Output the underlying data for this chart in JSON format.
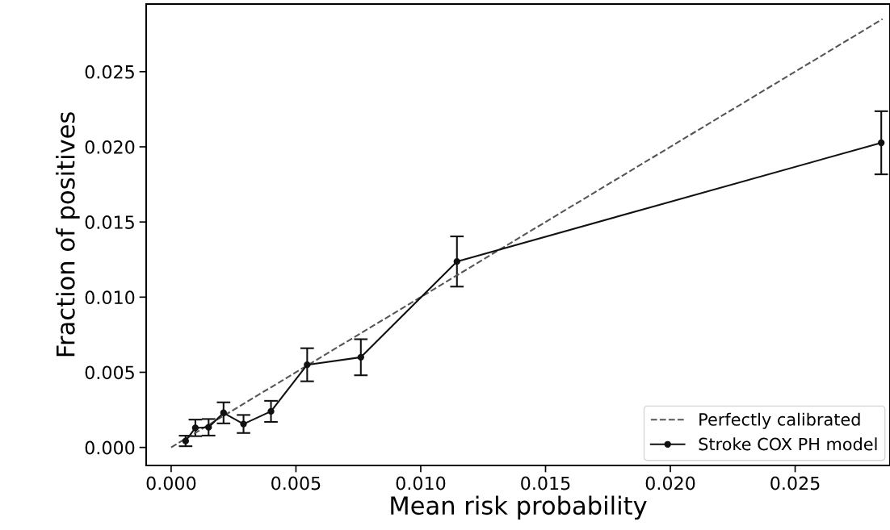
{
  "chart_data": {
    "type": "line",
    "xlabel": "Mean risk probability",
    "ylabel": "Fraction of positives",
    "xlim": [
      -0.001,
      0.0288
    ],
    "ylim": [
      -0.0012,
      0.0295
    ],
    "xticks": [
      {
        "value": 0,
        "label": "0.000"
      },
      {
        "value": 0.005,
        "label": "0.005"
      },
      {
        "value": 0.01,
        "label": "0.010"
      },
      {
        "value": 0.015,
        "label": "0.015"
      },
      {
        "value": 0.02,
        "label": "0.020"
      },
      {
        "value": 0.025,
        "label": "0.025"
      }
    ],
    "yticks": [
      {
        "value": 0,
        "label": "0.000"
      },
      {
        "value": 0.005,
        "label": "0.005"
      },
      {
        "value": 0.01,
        "label": "0.010"
      },
      {
        "value": 0.015,
        "label": "0.015"
      },
      {
        "value": 0.02,
        "label": "0.020"
      },
      {
        "value": 0.025,
        "label": "0.025"
      }
    ],
    "grid": false,
    "legend": "lower right",
    "series": [
      {
        "name": "Perfectly calibrated",
        "color": "#555555",
        "x": [
          0,
          0.0285
        ],
        "values": [
          0,
          0.0285
        ],
        "line_style": "dashed",
        "marker": "none"
      },
      {
        "name": "Stroke COX PH model",
        "color": "#111111",
        "x": [
          0.00058,
          0.00097,
          0.0015,
          0.0021,
          0.0029,
          0.004,
          0.00545,
          0.0076,
          0.01145,
          0.02845
        ],
        "values": [
          0.00043,
          0.0013,
          0.00134,
          0.0023,
          0.00156,
          0.0024,
          0.0055,
          0.006,
          0.01237,
          0.02027
        ],
        "errors": [
          0.00035,
          0.00055,
          0.00055,
          0.0007,
          0.0006,
          0.0007,
          0.0011,
          0.0012,
          0.00167,
          0.0021
        ],
        "line_style": "solid",
        "marker": "circle"
      }
    ]
  }
}
